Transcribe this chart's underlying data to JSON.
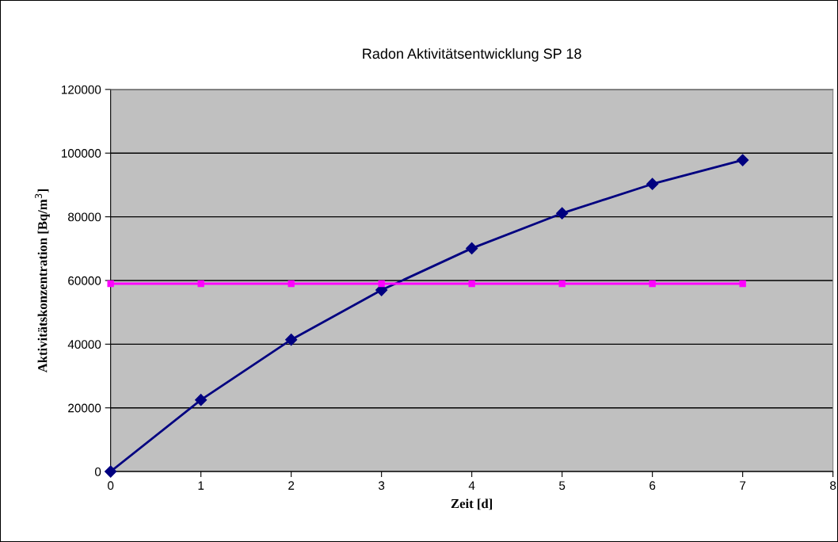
{
  "chart_data": {
    "type": "line",
    "title": "Radon Aktivitätsentwicklung SP 18",
    "xlabel": "Zeit [d]",
    "ylabel": "Aktivitätskonzentration [Bq/m$^{3}$]",
    "x": [
      0,
      1,
      2,
      3,
      4,
      5,
      6,
      7
    ],
    "series": [
      {
        "color": "#000080",
        "marker": "diamond",
        "values": [
          0,
          22500,
          41400,
          57000,
          70100,
          81100,
          90300,
          97800
        ]
      },
      {
        "color": "#ff00ff",
        "marker": "square",
        "values": [
          59000,
          59000,
          59000,
          59000,
          59000,
          59000,
          59000,
          59000
        ]
      }
    ],
    "xlim": [
      0,
      8
    ],
    "xticks": [
      0,
      1,
      2,
      3,
      4,
      5,
      6,
      7,
      8
    ],
    "ylim": [
      0,
      120000
    ],
    "yticks": [
      0,
      20000,
      40000,
      60000,
      80000,
      100000,
      120000
    ],
    "grid": "y",
    "legend": false,
    "line_style": "solid"
  }
}
